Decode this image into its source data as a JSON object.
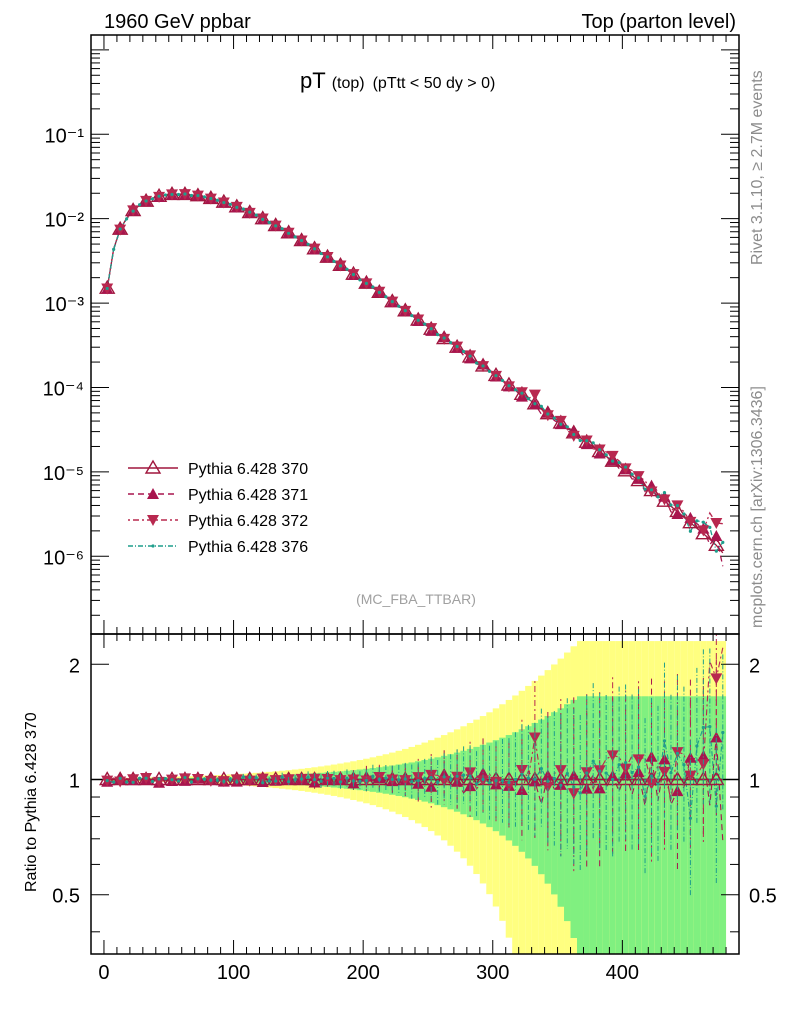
{
  "header": {
    "left": "1960 GeV ppbar",
    "right": "Top (parton level)"
  },
  "plot_title": {
    "main": "pT",
    "sub": "(top)",
    "cut": "(pTtt < 50 dy > 0)"
  },
  "side_labels": {
    "rivet": "Rivet 3.1.10, ≥ 2.7M events",
    "mcplots": "mcplots.cern.ch [arXiv:1306.3436]"
  },
  "watermark": "(MC_FBA_TTBAR)",
  "ratio_ylabel": "Ratio to Pythia 6.428 370",
  "colors": {
    "s370": "#a0163d",
    "s371": "#a8154e",
    "s372": "#b8284f",
    "s376": "#1f9e8c",
    "band_yellow": "#ffff80",
    "band_green": "#80f080"
  },
  "chart_data": {
    "type": "line",
    "x_ticks": [
      "0",
      "100",
      "200",
      "300",
      "400"
    ],
    "main_y_ticks": [
      "10⁻¹",
      "10⁻²",
      "10⁻³",
      "10⁻⁴",
      "10⁻⁵",
      "10⁻⁶"
    ],
    "ratio_y_ticks": [
      "0.5",
      "1",
      "2"
    ],
    "xlim": [
      -10,
      490
    ],
    "main_ylog": true,
    "main_ylim": [
      1.2e-07,
      1.5
    ],
    "ratio_ylog": true,
    "ratio_ylim": [
      0.35,
      2.4
    ],
    "x": [
      2.5,
      7.5,
      12.5,
      17.5,
      22.5,
      27.5,
      32.5,
      37.5,
      42.5,
      47.5,
      52.5,
      57.5,
      62.5,
      67.5,
      72.5,
      77.5,
      82.5,
      87.5,
      92.5,
      97.5,
      102.5,
      107.5,
      112.5,
      117.5,
      122.5,
      127.5,
      132.5,
      137.5,
      142.5,
      147.5,
      152.5,
      157.5,
      162.5,
      167.5,
      172.5,
      177.5,
      182.5,
      187.5,
      192.5,
      197.5,
      202.5,
      207.5,
      212.5,
      217.5,
      222.5,
      227.5,
      232.5,
      237.5,
      242.5,
      247.5,
      252.5,
      257.5,
      262.5,
      267.5,
      272.5,
      277.5,
      282.5,
      287.5,
      292.5,
      297.5,
      302.5,
      307.5,
      312.5,
      317.5,
      322.5,
      327.5,
      332.5,
      337.5,
      342.5,
      347.5,
      352.5,
      357.5,
      362.5,
      367.5,
      372.5,
      377.5,
      382.5,
      387.5,
      392.5,
      397.5,
      402.5,
      407.5,
      412.5,
      417.5,
      422.5,
      427.5,
      432.5,
      437.5,
      442.5,
      447.5,
      452.5,
      457.5,
      462.5,
      467.5,
      472.5,
      477.5
    ],
    "series": [
      {
        "name": "Pythia 6.428 370",
        "values": [
          0.0015,
          0.0044,
          0.0075,
          0.0101,
          0.0125,
          0.0145,
          0.0161,
          0.0174,
          0.0184,
          0.019,
          0.0194,
          0.0195,
          0.0194,
          0.0191,
          0.0187,
          0.0181,
          0.0174,
          0.0166,
          0.0157,
          0.0148,
          0.0138,
          0.0128,
          0.0118,
          0.0109,
          0.01,
          0.0091,
          0.0083,
          0.0075,
          0.0068,
          0.0061,
          0.0055,
          0.0049,
          0.0044,
          0.0039,
          0.0035,
          0.0031,
          0.0028,
          0.0025,
          0.0022,
          0.0019,
          0.00172,
          0.00152,
          0.00134,
          0.00118,
          0.00104,
          0.00092,
          0.00081,
          0.00072,
          0.00063,
          0.00056,
          0.00049,
          0.00043,
          0.00038,
          0.00034,
          0.0003,
          0.00026,
          0.00023,
          0.0002,
          0.00018,
          0.000158,
          0.000139,
          0.000122,
          0.000107,
          9.4e-05,
          8.3e-05,
          7.3e-05,
          6.4e-05,
          5.6e-05,
          4.9e-05,
          4.3e-05,
          3.8e-05,
          3.3e-05,
          2.9e-05,
          2.55e-05,
          2.25e-05,
          1.98e-05,
          1.74e-05,
          1.53e-05,
          1.34e-05,
          1.18e-05,
          1.03e-05,
          9e-06,
          7.9e-06,
          6.9e-06,
          6e-06,
          5.2e-06,
          4.5e-06,
          3.9e-06,
          3.4e-06,
          2.9e-06,
          2.5e-06,
          2.15e-06,
          1.85e-06,
          1.6e-06,
          1.35e-06,
          1.1e-06
        ]
      },
      {
        "name": "Pythia 6.428 371",
        "values": [
          0.00148,
          0.00432,
          0.00751,
          0.00993,
          0.01245,
          0.01452,
          0.01609,
          0.01745,
          0.01804,
          0.01886,
          0.01922,
          0.0196,
          0.01924,
          0.01888,
          0.01881,
          0.01786,
          0.01737,
          0.01633,
          0.0155,
          0.01468,
          0.01363,
          0.01282,
          0.01175,
          0.01096,
          0.00985,
          0.00912,
          0.00824,
          0.00755,
          0.0068,
          0.0061,
          0.00551,
          0.00493,
          0.00432,
          0.00393,
          0.0035,
          0.00306,
          0.0028,
          0.00249,
          0.00215,
          0.00188,
          0.00175,
          0.00151,
          0.00135,
          0.00117,
          0.00103,
          0.000901,
          0.000807,
          0.000717,
          0.000614,
          0.000557,
          0.000469,
          0.000428,
          0.000393,
          0.000344,
          0.000296,
          0.00024,
          0.000221,
          0.000203,
          0.000187,
          0.000154,
          0.000135,
          0.00012,
          0.000103,
          9.3e-05,
          7.79e-05,
          7.68e-05,
          6.33e-05,
          4.83e-05,
          5.02e-05,
          4.06e-05,
          3.68e-05,
          3.44e-05,
          2.97e-05,
          2.59e-05,
          2.13e-05,
          2.04e-05,
          1.65e-05,
          1.46e-05,
          1.37e-05,
          1.1e-05,
          1.07e-05,
          8.24e-06,
          8.26e-06,
          5.89e-06,
          6.88e-06,
          4.57e-06,
          5.08e-06,
          3.36e-06,
          3.17e-06,
          2.77e-06,
          2.85e-06,
          2.43e-06,
          2.13e-06,
          1.37e-06,
          1.74e-06,
          7.6e-07
        ]
      },
      {
        "name": "Pythia 6.428 372",
        "values": [
          0.00149,
          0.00444,
          0.00741,
          0.01016,
          0.01252,
          0.01449,
          0.01625,
          0.01756,
          0.01814,
          0.01906,
          0.01938,
          0.01933,
          0.01954,
          0.01888,
          0.01876,
          0.01809,
          0.01726,
          0.01678,
          0.01555,
          0.01478,
          0.01381,
          0.0128,
          0.01172,
          0.0109,
          0.01005,
          0.00911,
          0.00827,
          0.00752,
          0.00681,
          0.00616,
          0.00552,
          0.00487,
          0.00442,
          0.00391,
          0.00351,
          0.00313,
          0.00279,
          0.0025,
          0.0022,
          0.00189,
          0.00171,
          0.00154,
          0.00136,
          0.00119,
          0.00104,
          0.000924,
          0.000807,
          0.000714,
          0.000639,
          0.000559,
          0.000504,
          0.000441,
          0.000377,
          0.000333,
          0.000305,
          0.000264,
          0.00024,
          0.000189,
          0.000179,
          0.000163,
          0.000137,
          0.000122,
          0.000103,
          9.03e-05,
          8.79e-05,
          7.39e-05,
          8.24e-05,
          5.51e-05,
          4.69e-05,
          4.46e-05,
          4.02e-05,
          3.19e-05,
          2.67e-05,
          2.42e-05,
          2.35e-05,
          1.87e-05,
          1.84e-05,
          1.73e-05,
          1.55e-05,
          1.35e-05,
          1.1e-05,
          1.04e-05,
          8.92e-06,
          7.88e-06,
          5.85e-06,
          5.67e-06,
          4.71e-06,
          3.45e-06,
          4.01e-06,
          3.38e-06,
          2.56e-06,
          2.21e-06,
          2.03e-06,
          3.26e-06,
          2.48e-06,
          2.43e-06
        ]
      },
      {
        "name": "Pythia 6.428 376",
        "values": [
          0.00149,
          0.00433,
          0.00755,
          0.00994,
          0.01229,
          0.01461,
          0.01622,
          0.0172,
          0.01847,
          0.0191,
          0.01938,
          0.01933,
          0.01963,
          0.01881,
          0.01879,
          0.01814,
          0.01734,
          0.01653,
          0.01552,
          0.0148,
          0.01361,
          0.01301,
          0.01196,
          0.01101,
          0.00981,
          0.00902,
          0.00822,
          0.00761,
          0.00671,
          0.00609,
          0.00552,
          0.00497,
          0.0044,
          0.00386,
          0.00353,
          0.00312,
          0.00276,
          0.00252,
          0.00218,
          0.00188,
          0.00171,
          0.00155,
          0.00134,
          0.00119,
          0.00104,
          0.000918,
          0.000813,
          0.000711,
          0.000626,
          0.000564,
          0.000496,
          0.000423,
          0.000386,
          0.00034,
          0.000306,
          0.000267,
          0.000235,
          0.000195,
          0.00018,
          0.000155,
          0.000138,
          0.000121,
          0.000105,
          9.4e-05,
          8.56e-05,
          7.36e-05,
          6.41e-05,
          5.98e-05,
          4.85e-05,
          4.33e-05,
          3.67e-05,
          3.42e-05,
          2.77e-05,
          2.35e-05,
          2.34e-05,
          2.21e-05,
          1.83e-05,
          1.59e-05,
          1.34e-05,
          1.29e-05,
          1.14e-05,
          9.38e-06,
          8.51e-06,
          6.24e-06,
          6.13e-06,
          5.06e-06,
          5.68e-06,
          4.06e-06,
          3.98e-06,
          3.17e-06,
          1.98e-06,
          2.63e-06,
          2.53e-06,
          2.2e-06,
          1.15e-06,
          1.46e-06
        ]
      }
    ]
  }
}
